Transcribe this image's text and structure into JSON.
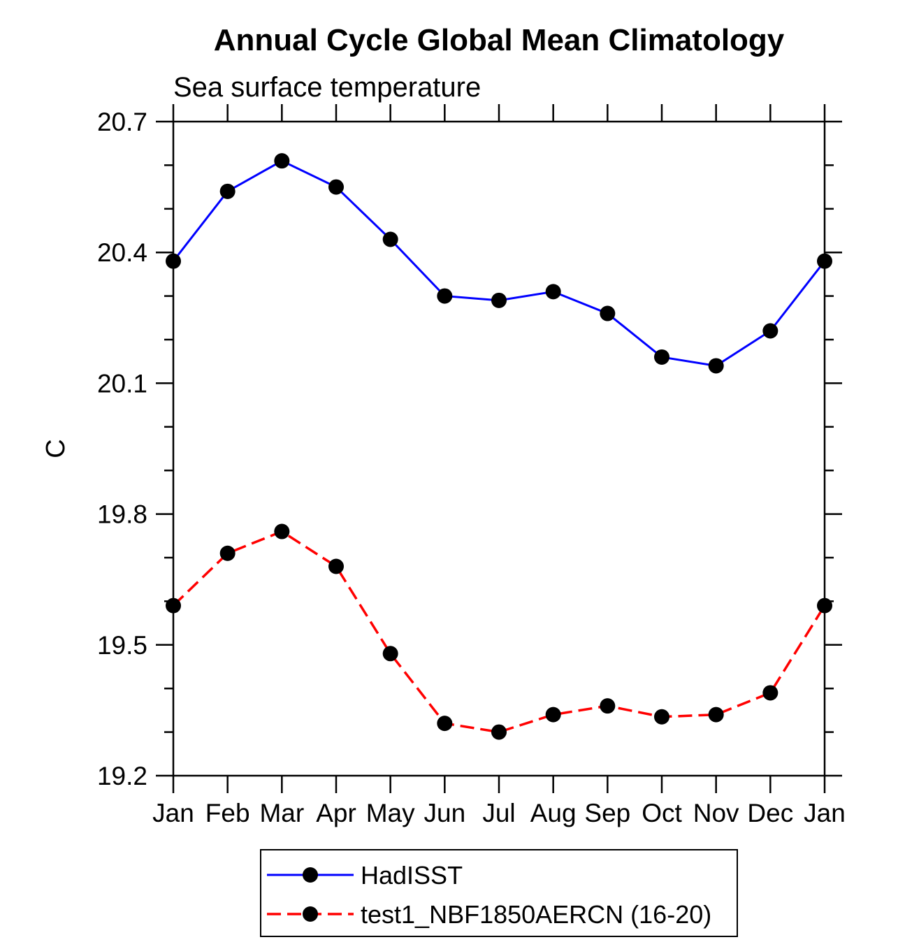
{
  "chart_data": {
    "type": "line",
    "title": "Annual Cycle Global Mean Climatology",
    "subtitle": "Sea surface temperature",
    "ylabel": "C",
    "xlabel": "",
    "x_categories": [
      "Jan",
      "Feb",
      "Mar",
      "Apr",
      "May",
      "Jun",
      "Jul",
      "Aug",
      "Sep",
      "Oct",
      "Nov",
      "Dec",
      "Jan"
    ],
    "ylim": [
      19.2,
      20.7
    ],
    "ytick_major": [
      19.2,
      19.5,
      19.8,
      20.1,
      20.4,
      20.7
    ],
    "ytick_minor_step": 0.1,
    "grid": false,
    "axis_color": "#000000",
    "marker_color": "#000000",
    "series": [
      {
        "name": "HadISST",
        "color": "#0000ff",
        "style": "solid",
        "marker": "filled-circle",
        "values": [
          20.38,
          20.54,
          20.61,
          20.55,
          20.43,
          20.3,
          20.29,
          20.31,
          20.26,
          20.16,
          20.14,
          20.22,
          20.38
        ]
      },
      {
        "name": "test1_NBF1850AERCN (16-20)",
        "color": "#ff0000",
        "style": "dashed",
        "marker": "filled-circle",
        "values": [
          19.59,
          19.71,
          19.76,
          19.68,
          19.48,
          19.32,
          19.3,
          19.34,
          19.36,
          19.335,
          19.34,
          19.39,
          19.59
        ]
      }
    ],
    "legend": {
      "position": "bottom",
      "border": true
    }
  }
}
